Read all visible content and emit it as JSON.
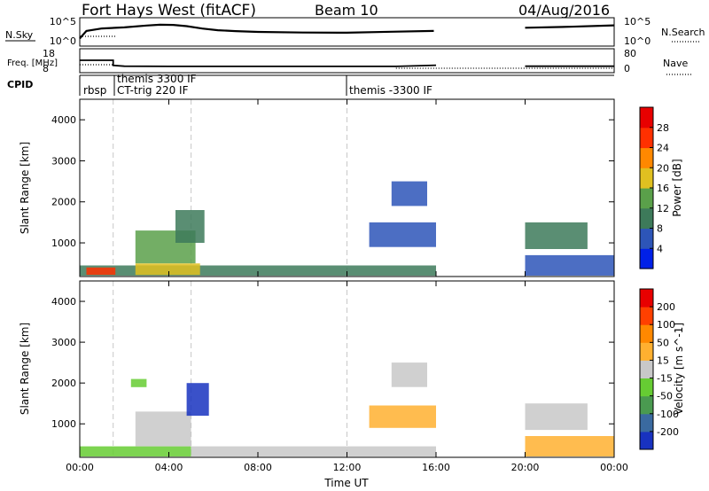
{
  "header": {
    "station": "Fort Hays West (fitACF)",
    "beam": "Beam 10",
    "date": "04/Aug/2016"
  },
  "chart_data": [
    {
      "type": "line",
      "panel": "noise",
      "left_label": "N.Sky",
      "right_label": "N.Search",
      "left_ticks": [
        "10^5",
        "10^0"
      ],
      "right_ticks": [
        "10^5",
        "10^0"
      ],
      "yscale": "log",
      "ylim": [
        1,
        100000
      ],
      "gap_hours": [
        16.0,
        20.0
      ],
      "series": [
        {
          "name": "N.Sky",
          "x": [
            0,
            0.3,
            1.0,
            2.0,
            3.0,
            3.6,
            4.2,
            4.8,
            5.5,
            6.2,
            7.0,
            8.0,
            10.0,
            12.0,
            14.0,
            15.9,
            20.0,
            22.0,
            24.0
          ],
          "y": [
            15,
            500,
            1600,
            2600,
            6000,
            9000,
            8000,
            4500,
            1500,
            700,
            450,
            320,
            240,
            220,
            350,
            500,
            2200,
            3500,
            6500
          ]
        }
      ]
    },
    {
      "type": "line",
      "panel": "frequency",
      "left_label": "Freq. [MHz]",
      "right_label": "Nave",
      "left_ticks": [
        "18",
        "8"
      ],
      "right_ticks": [
        "80",
        "0"
      ],
      "ylim": [
        8,
        18
      ],
      "series": [
        {
          "name": "Freq.",
          "x": [
            0,
            1.5,
            1.5,
            2.0,
            4.0,
            8.0,
            12.0,
            14.2,
            16.0,
            20.0,
            24.0
          ],
          "y": [
            13.2,
            13.2,
            10.7,
            10.3,
            10.2,
            10.2,
            10.2,
            10.2,
            10.8,
            10.3,
            10.3
          ]
        }
      ]
    },
    {
      "type": "table",
      "panel": "cpid",
      "label": "CPID",
      "entries": [
        {
          "hour": 0.0,
          "text": "rbsp"
        },
        {
          "hour": 1.5,
          "text": "themis 3300 IF"
        },
        {
          "hour": 1.5,
          "text": "CT-trig 220 IF"
        },
        {
          "hour": 12.0,
          "text": "themis -3300 IF"
        }
      ]
    },
    {
      "type": "heatmap",
      "panel": "power",
      "ylabel": "Slant Range [km]",
      "yticks": [
        1000,
        2000,
        3000,
        4000
      ],
      "ylim": [
        180,
        4500
      ],
      "colorbar": {
        "label": "Power [dB]",
        "ticks": [
          "4",
          "8",
          "12",
          "16",
          "20",
          "24",
          "28"
        ],
        "range": [
          0,
          30
        ],
        "colors": [
          "#0020e8",
          "#2d55b8",
          "#3d7a5a",
          "#5aa04a",
          "#e0c020",
          "#ff8800",
          "#ff3000",
          "#e80000"
        ]
      },
      "regions": [
        {
          "t0": 0.0,
          "t1": 16.0,
          "r0": 200,
          "r1": 450,
          "value": 10
        },
        {
          "t0": 0.3,
          "t1": 1.6,
          "r0": 220,
          "r1": 400,
          "value": 24
        },
        {
          "t0": 2.5,
          "t1": 5.4,
          "r0": 220,
          "r1": 500,
          "value": 18
        },
        {
          "t0": 2.5,
          "t1": 5.2,
          "r0": 500,
          "r1": 1300,
          "value": 12
        },
        {
          "t0": 4.3,
          "t1": 5.6,
          "r0": 1000,
          "r1": 1800,
          "value": 10
        },
        {
          "t0": 13.0,
          "t1": 16.0,
          "r0": 900,
          "r1": 1500,
          "value": 6
        },
        {
          "t0": 14.0,
          "t1": 15.6,
          "r0": 1900,
          "r1": 2500,
          "value": 5
        },
        {
          "t0": 20.0,
          "t1": 22.8,
          "r0": 850,
          "r1": 1500,
          "value": 8
        },
        {
          "t0": 20.0,
          "t1": 24.0,
          "r0": 200,
          "r1": 700,
          "value": 7
        }
      ]
    },
    {
      "type": "heatmap",
      "panel": "velocity",
      "ylabel": "Slant Range [km]",
      "xlabel": "Time UT",
      "yticks": [
        1000,
        2000,
        3000,
        4000
      ],
      "ylim": [
        180,
        4500
      ],
      "xticks": [
        "00:00",
        "04:00",
        "08:00",
        "12:00",
        "16:00",
        "20:00",
        "00:00"
      ],
      "xlim": [
        0,
        24
      ],
      "colorbar": {
        "label": "Velocity [m s^-1]",
        "ticks": [
          "200",
          "100",
          "50",
          "15",
          "-15",
          "-50",
          "-100",
          "-200"
        ],
        "range": [
          -250,
          250
        ],
        "colors": [
          "#1832c0",
          "#3a6aa0",
          "#4a9a50",
          "#66cc33",
          "#c8c8c8",
          "#ffb030",
          "#ff8800",
          "#ff4000",
          "#e80000"
        ]
      },
      "regions": [
        {
          "t0": 0.0,
          "t1": 5.0,
          "r0": 200,
          "r1": 450,
          "value": -60
        },
        {
          "t0": 5.0,
          "t1": 16.0,
          "r0": 200,
          "r1": 450,
          "value": -20
        },
        {
          "t0": 2.5,
          "t1": 5.0,
          "r0": 450,
          "r1": 1300,
          "value": 0
        },
        {
          "t0": 4.8,
          "t1": 5.8,
          "r0": 1200,
          "r1": 2000,
          "value": -220
        },
        {
          "t0": 2.3,
          "t1": 3.0,
          "r0": 1900,
          "r1": 2100,
          "value": -80
        },
        {
          "t0": 13.0,
          "t1": 16.0,
          "r0": 900,
          "r1": 1450,
          "value": 40
        },
        {
          "t0": 14.0,
          "t1": 15.6,
          "r0": 1900,
          "r1": 2500,
          "value": 5
        },
        {
          "t0": 20.0,
          "t1": 22.8,
          "r0": 850,
          "r1": 1500,
          "value": -10
        },
        {
          "t0": 20.0,
          "t1": 24.0,
          "r0": 200,
          "r1": 700,
          "value": 60
        }
      ]
    }
  ]
}
